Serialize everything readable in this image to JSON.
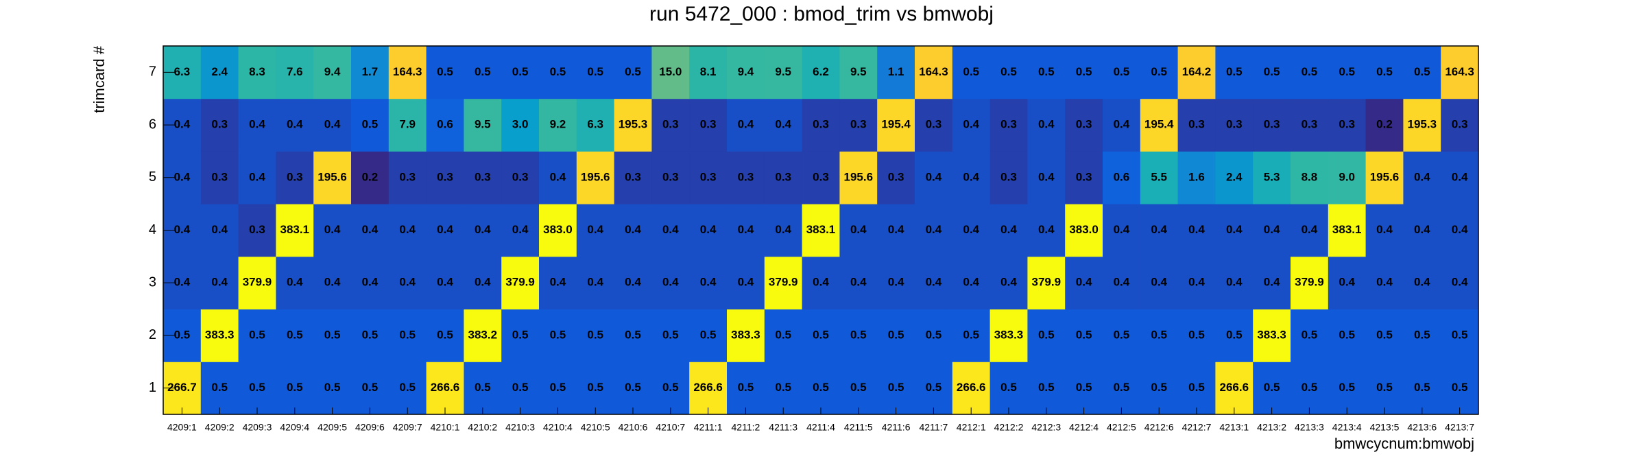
{
  "chart_data": {
    "type": "heatmap",
    "title": "run 5472_000 : bmod_trim vs bmwobj",
    "x_label": "bmwcycnum:bmwobj",
    "y_label": "trimcard #",
    "x_categories": [
      "4209:1",
      "4209:2",
      "4209:3",
      "4209:4",
      "4209:5",
      "4209:6",
      "4209:7",
      "4210:1",
      "4210:2",
      "4210:3",
      "4210:4",
      "4210:5",
      "4210:6",
      "4210:7",
      "4211:1",
      "4211:2",
      "4211:3",
      "4211:4",
      "4211:5",
      "4211:6",
      "4211:7",
      "4212:1",
      "4212:2",
      "4212:3",
      "4212:4",
      "4212:5",
      "4212:6",
      "4212:7",
      "4213:1",
      "4213:2",
      "4213:3",
      "4213:4",
      "4213:5",
      "4213:6",
      "4213:7"
    ],
    "y_categories": [
      "1",
      "2",
      "3",
      "4",
      "5",
      "6",
      "7"
    ],
    "z": [
      [
        266.7,
        0.5,
        0.5,
        0.5,
        0.5,
        0.5,
        0.5,
        266.6,
        0.5,
        0.5,
        0.5,
        0.5,
        0.5,
        0.5,
        266.6,
        0.5,
        0.5,
        0.5,
        0.5,
        0.5,
        0.5,
        266.6,
        0.5,
        0.5,
        0.5,
        0.5,
        0.5,
        0.5,
        266.6,
        0.5,
        0.5,
        0.5,
        0.5,
        0.5,
        0.5
      ],
      [
        0.5,
        383.3,
        0.5,
        0.5,
        0.5,
        0.5,
        0.5,
        0.5,
        383.2,
        0.5,
        0.5,
        0.5,
        0.5,
        0.5,
        0.5,
        383.3,
        0.5,
        0.5,
        0.5,
        0.5,
        0.5,
        0.5,
        383.3,
        0.5,
        0.5,
        0.5,
        0.5,
        0.5,
        0.5,
        383.3,
        0.5,
        0.5,
        0.5,
        0.5,
        0.5
      ],
      [
        0.4,
        0.4,
        379.9,
        0.4,
        0.4,
        0.4,
        0.4,
        0.4,
        0.4,
        379.9,
        0.4,
        0.4,
        0.4,
        0.4,
        0.4,
        0.4,
        379.9,
        0.4,
        0.4,
        0.4,
        0.4,
        0.4,
        0.4,
        379.9,
        0.4,
        0.4,
        0.4,
        0.4,
        0.4,
        0.4,
        379.9,
        0.4,
        0.4,
        0.4,
        0.4
      ],
      [
        0.4,
        0.4,
        0.3,
        383.1,
        0.4,
        0.4,
        0.4,
        0.4,
        0.4,
        0.4,
        383.0,
        0.4,
        0.4,
        0.4,
        0.4,
        0.4,
        0.4,
        383.1,
        0.4,
        0.4,
        0.4,
        0.4,
        0.4,
        0.4,
        383.0,
        0.4,
        0.4,
        0.4,
        0.4,
        0.4,
        0.4,
        383.1,
        0.4,
        0.4,
        0.4
      ],
      [
        0.4,
        0.3,
        0.4,
        0.3,
        195.6,
        0.2,
        0.3,
        0.3,
        0.3,
        0.3,
        0.4,
        195.6,
        0.3,
        0.3,
        0.3,
        0.3,
        0.3,
        0.3,
        195.6,
        0.3,
        0.4,
        0.4,
        0.3,
        0.4,
        0.3,
        0.6,
        5.5,
        1.6,
        2.4,
        5.3,
        8.8,
        9.0,
        195.6,
        0.4,
        0.4
      ],
      [
        0.4,
        0.3,
        0.4,
        0.4,
        0.4,
        0.5,
        7.9,
        0.6,
        9.5,
        3.0,
        9.2,
        6.3,
        195.3,
        0.3,
        0.3,
        0.4,
        0.4,
        0.3,
        0.3,
        195.4,
        0.3,
        0.4,
        0.3,
        0.4,
        0.3,
        0.4,
        195.4,
        0.3,
        0.3,
        0.3,
        0.3,
        0.3,
        0.2,
        195.3,
        0.3
      ],
      [
        6.3,
        2.4,
        8.3,
        7.6,
        9.4,
        1.7,
        164.3,
        0.5,
        0.5,
        0.5,
        0.5,
        0.5,
        0.5,
        15.0,
        8.1,
        9.4,
        9.5,
        6.2,
        9.5,
        1.1,
        164.3,
        0.5,
        0.5,
        0.5,
        0.5,
        0.5,
        0.5,
        164.2,
        0.5,
        0.5,
        0.5,
        0.5,
        0.5,
        0.5,
        164.3
      ]
    ],
    "value_labels": [
      [
        "266.7",
        "0.5",
        "0.5",
        "0.5",
        "0.5",
        "0.5",
        "0.5",
        "266.6",
        "0.5",
        "0.5",
        "0.5",
        "0.5",
        "0.5",
        "0.5",
        "266.6",
        "0.5",
        "0.5",
        "0.5",
        "0.5",
        "0.5",
        "0.5",
        "266.6",
        "0.5",
        "0.5",
        "0.5",
        "0.5",
        "0.5",
        "0.5",
        "266.6",
        "0.5",
        "0.5",
        "0.5",
        "0.5",
        "0.5",
        "0.5"
      ],
      [
        "0.5",
        "383.3",
        "0.5",
        "0.5",
        "0.5",
        "0.5",
        "0.5",
        "0.5",
        "383.2",
        "0.5",
        "0.5",
        "0.5",
        "0.5",
        "0.5",
        "0.5",
        "383.3",
        "0.5",
        "0.5",
        "0.5",
        "0.5",
        "0.5",
        "0.5",
        "383.3",
        "0.5",
        "0.5",
        "0.5",
        "0.5",
        "0.5",
        "0.5",
        "383.3",
        "0.5",
        "0.5",
        "0.5",
        "0.5",
        "0.5"
      ],
      [
        "0.4",
        "0.4",
        "379.9",
        "0.4",
        "0.4",
        "0.4",
        "0.4",
        "0.4",
        "0.4",
        "379.9",
        "0.4",
        "0.4",
        "0.4",
        "0.4",
        "0.4",
        "0.4",
        "379.9",
        "0.4",
        "0.4",
        "0.4",
        "0.4",
        "0.4",
        "0.4",
        "379.9",
        "0.4",
        "0.4",
        "0.4",
        "0.4",
        "0.4",
        "0.4",
        "379.9",
        "0.4",
        "0.4",
        "0.4",
        "0.4"
      ],
      [
        "0.4",
        "0.4",
        "0.3",
        "383.1",
        "0.4",
        "0.4",
        "0.4",
        "0.4",
        "0.4",
        "0.4",
        "383.0",
        "0.4",
        "0.4",
        "0.4",
        "0.4",
        "0.4",
        "0.4",
        "383.1",
        "0.4",
        "0.4",
        "0.4",
        "0.4",
        "0.4",
        "0.4",
        "383.0",
        "0.4",
        "0.4",
        "0.4",
        "0.4",
        "0.4",
        "0.4",
        "383.1",
        "0.4",
        "0.4",
        "0.4"
      ],
      [
        "0.4",
        "0.3",
        "0.4",
        "0.3",
        "195.6",
        "0.2",
        "0.3",
        "0.3",
        "0.3",
        "0.3",
        "0.4",
        "195.6",
        "0.3",
        "0.3",
        "0.3",
        "0.3",
        "0.3",
        "0.3",
        "195.6",
        "0.3",
        "0.4",
        "0.4",
        "0.3",
        "0.4",
        "0.3",
        "0.6",
        "5.5",
        "1.6",
        "2.4",
        "5.3",
        "8.8",
        "9.0",
        "195.6",
        "0.4",
        "0.4"
      ],
      [
        "0.4",
        "0.3",
        "0.4",
        "0.4",
        "0.4",
        "0.5",
        "7.9",
        "0.6",
        "9.5",
        "3.0",
        "9.2",
        "6.3",
        "195.3",
        "0.3",
        "0.3",
        "0.4",
        "0.4",
        "0.3",
        "0.3",
        "195.4",
        "0.3",
        "0.4",
        "0.3",
        "0.4",
        "0.3",
        "0.4",
        "195.4",
        "0.3",
        "0.3",
        "0.3",
        "0.3",
        "0.3",
        "0.2",
        "195.3",
        "0.3"
      ],
      [
        "6.3",
        "2.4",
        "8.3",
        "7.6",
        "9.4",
        "1.7",
        "164.3",
        "0.5",
        "0.5",
        "0.5",
        "0.5",
        "0.5",
        "0.5",
        "15.0",
        "8.1",
        "9.4",
        "9.5",
        "6.2",
        "9.5",
        "1.1",
        "164.3",
        "0.5",
        "0.5",
        "0.5",
        "0.5",
        "0.5",
        "0.5",
        "164.2",
        "0.5",
        "0.5",
        "0.5",
        "0.5",
        "0.5",
        "0.5",
        "164.3"
      ]
    ],
    "zlog": true,
    "colorscale": [
      "#352a87",
      "#0f5cdd",
      "#1481d6",
      "#06a4ca",
      "#2eb7a4",
      "#87bf77",
      "#d1bb59",
      "#fec832",
      "#f9fb0e"
    ]
  }
}
